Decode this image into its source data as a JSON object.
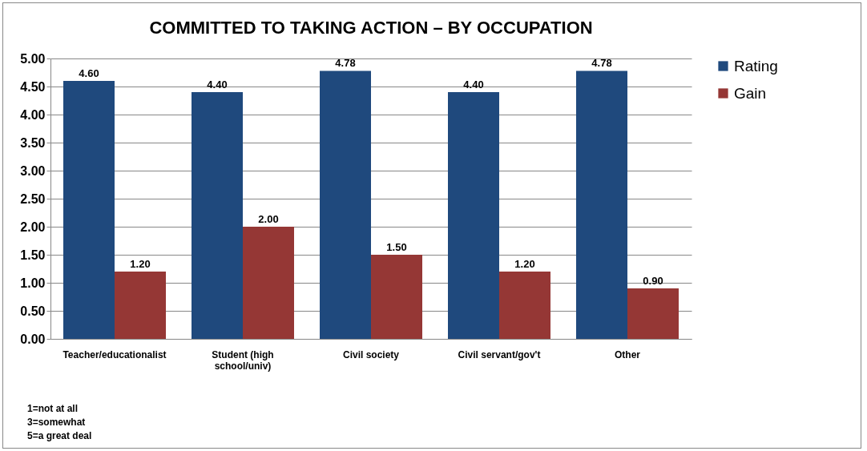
{
  "chart_data": {
    "type": "bar",
    "title": "COMMITTED TO TAKING ACTION – BY OCCUPATION",
    "categories": [
      "Teacher/educationalist",
      "Student (high school/univ)",
      "Civil society",
      "Civil servant/gov't",
      "Other"
    ],
    "series": [
      {
        "name": "Rating",
        "color": "#1f497d",
        "values": [
          4.6,
          4.4,
          4.78,
          4.4,
          4.78
        ],
        "value_labels": [
          "4.60",
          "4.40",
          "4.78",
          "4.40",
          "4.78"
        ]
      },
      {
        "name": "Gain",
        "color": "#953735",
        "values": [
          1.2,
          2.0,
          1.5,
          1.2,
          0.9
        ],
        "value_labels": [
          "1.20",
          "2.00",
          "1.50",
          "1.20",
          "0.90"
        ]
      }
    ],
    "ylim": [
      0,
      5
    ],
    "yticks": [
      {
        "value": 0,
        "label": "0.00"
      },
      {
        "value": 0.5,
        "label": "0.50"
      },
      {
        "value": 1,
        "label": "1.00"
      },
      {
        "value": 1.5,
        "label": "1.50"
      },
      {
        "value": 2,
        "label": "2.00"
      },
      {
        "value": 2.5,
        "label": "2.50"
      },
      {
        "value": 3,
        "label": "3.00"
      },
      {
        "value": 3.5,
        "label": "3.50"
      },
      {
        "value": 4,
        "label": "4.00"
      },
      {
        "value": 4.5,
        "label": "4.50"
      },
      {
        "value": 5,
        "label": "5.00"
      }
    ],
    "grid": "y",
    "legend": "right",
    "annotations": [
      "1=not at all",
      "3=somewhat",
      "5=a great deal"
    ]
  }
}
